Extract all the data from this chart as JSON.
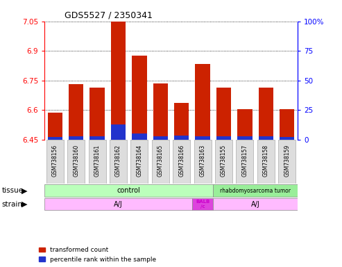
{
  "title": "GDS5527 / 2350341",
  "samples": [
    "GSM738156",
    "GSM738160",
    "GSM738161",
    "GSM738162",
    "GSM738164",
    "GSM738165",
    "GSM738166",
    "GSM738163",
    "GSM738155",
    "GSM738157",
    "GSM738158",
    "GSM738159"
  ],
  "bar_values": [
    6.585,
    6.73,
    6.715,
    7.048,
    6.875,
    6.735,
    6.635,
    6.835,
    6.715,
    6.605,
    6.715,
    6.605
  ],
  "blue_heights": [
    0.012,
    0.018,
    0.018,
    0.075,
    0.03,
    0.018,
    0.022,
    0.018,
    0.018,
    0.018,
    0.018,
    0.012
  ],
  "ymin": 6.45,
  "ymax": 7.05,
  "yticks": [
    6.45,
    6.6,
    6.75,
    6.9,
    7.05
  ],
  "ytick_labels": [
    "6.45",
    "6.6",
    "6.75",
    "6.9",
    "7.05"
  ],
  "right_ytick_percents": [
    0,
    25,
    50,
    75,
    100
  ],
  "right_ytick_labels": [
    "0",
    "25",
    "50",
    "75",
    "100%"
  ],
  "bar_color": "#cc2200",
  "blue_color": "#2233cc",
  "tissue_control_color": "#bbffbb",
  "tissue_tumor_color": "#99ee99",
  "strain_aj_color": "#ffbbff",
  "strain_balb_color": "#dd44dd",
  "strain_balb_text_color": "#cc00cc",
  "base_value": 6.45,
  "bar_width": 0.7,
  "control_count": 8,
  "tumor_count": 4,
  "aj1_count": 7,
  "balb_count": 1,
  "aj2_count": 4,
  "tissue_control_label": "control",
  "tissue_tumor_label": "rhabdomyosarcoma tumor",
  "strain_aj_label": "A/J",
  "strain_balb_label": "BALB\n/c",
  "legend_red_label": "transformed count",
  "legend_blue_label": "percentile rank within the sample"
}
